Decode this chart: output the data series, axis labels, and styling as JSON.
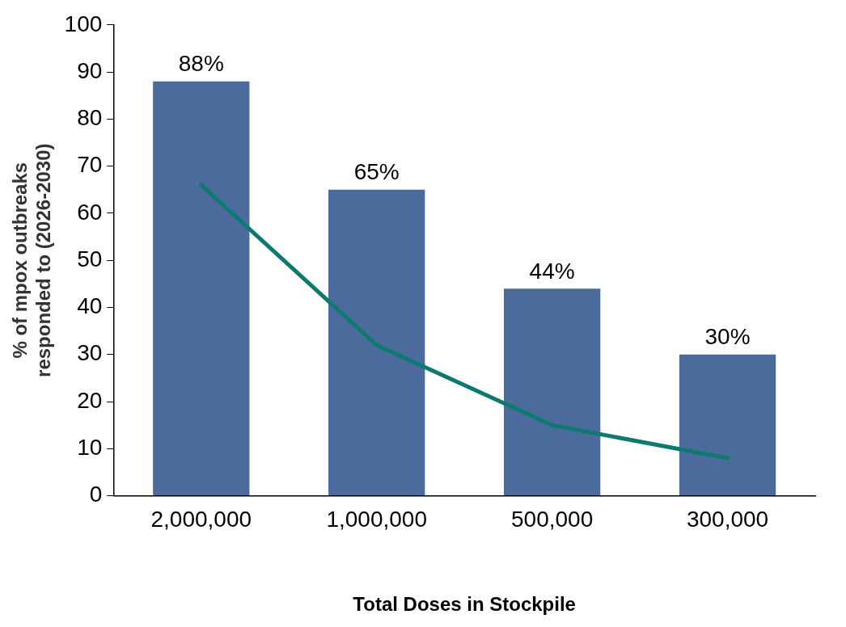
{
  "chart_data": {
    "type": "bar",
    "xlabel": "Total Doses in Stockpile",
    "ylabel": "% of mpox outbreaks responded to (2026-2030)",
    "categories": [
      "2,000,000",
      "1,000,000",
      "500,000",
      "300,000"
    ],
    "series": [
      {
        "color": "#4a6b9b",
        "values": [
          88,
          65,
          44,
          30
        ],
        "value_labels": [
          "88%",
          "65%",
          "44%",
          "30%"
        ]
      },
      {
        "type": "line",
        "color": "#0e7a6f",
        "values": [
          66,
          32,
          15,
          8
        ],
        "marker": "none"
      }
    ],
    "ylim": [
      0,
      100
    ],
    "yticks": [
      0,
      10,
      20,
      30,
      40,
      50,
      60,
      70,
      80,
      90,
      100
    ]
  }
}
